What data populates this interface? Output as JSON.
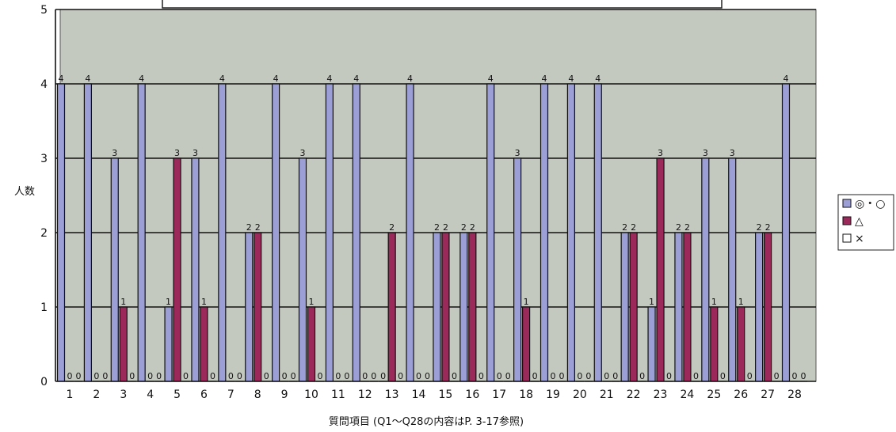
{
  "chart_data": {
    "type": "bar",
    "ylabel": "人数",
    "xlabel": "質問項目 (Q1～Q28の内容はP. 3-17参照)",
    "ylim": [
      0,
      5
    ],
    "yticks": [
      0,
      1,
      2,
      3,
      4,
      5
    ],
    "grid": true,
    "legend_position": "right",
    "categories": [
      "1",
      "2",
      "3",
      "4",
      "5",
      "6",
      "7",
      "8",
      "9",
      "10",
      "11",
      "12",
      "13",
      "14",
      "15",
      "16",
      "17",
      "18",
      "19",
      "20",
      "21",
      "22",
      "23",
      "24",
      "25",
      "26",
      "27",
      "28"
    ],
    "series": [
      {
        "name": "◎・○",
        "color": "#9b9fd6",
        "values": [
          4,
          4,
          3,
          4,
          1,
          3,
          4,
          2,
          4,
          3,
          4,
          4,
          0,
          4,
          2,
          2,
          4,
          3,
          4,
          4,
          4,
          2,
          1,
          2,
          3,
          3,
          2,
          4
        ]
      },
      {
        "name": "△",
        "color": "#9b2a5a",
        "values": [
          0,
          0,
          1,
          0,
          3,
          1,
          0,
          2,
          0,
          1,
          0,
          0,
          2,
          0,
          2,
          2,
          0,
          1,
          0,
          0,
          0,
          2,
          3,
          2,
          1,
          1,
          2,
          0
        ]
      },
      {
        "name": "×",
        "color": "#ffffff",
        "values": [
          0,
          0,
          0,
          0,
          0,
          0,
          0,
          0,
          0,
          0,
          0,
          0,
          0,
          0,
          0,
          0,
          0,
          0,
          0,
          0,
          0,
          0,
          0,
          0,
          0,
          0,
          0,
          0
        ]
      }
    ]
  }
}
